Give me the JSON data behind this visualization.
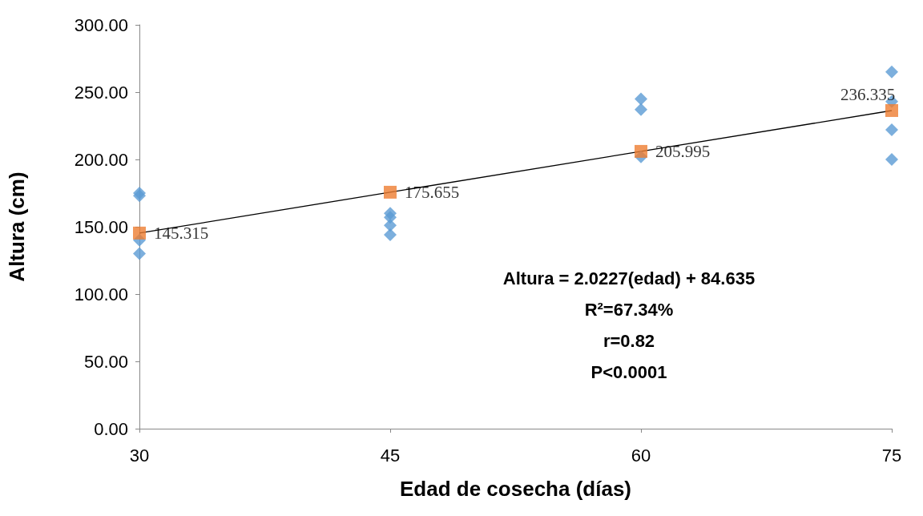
{
  "chart_data": {
    "type": "scatter",
    "xlabel": "Edad de cosecha (días)",
    "ylabel": "Altura (cm)",
    "xlim": [
      30,
      75
    ],
    "xticks": [
      30,
      45,
      60,
      75
    ],
    "ylim": [
      0,
      300
    ],
    "yticks": [
      {
        "value": 0,
        "label": "0.00"
      },
      {
        "value": 50,
        "label": "50.00"
      },
      {
        "value": 100,
        "label": "100.00"
      },
      {
        "value": 150,
        "label": "150.00"
      },
      {
        "value": 200,
        "label": "200.00"
      },
      {
        "value": 250,
        "label": "250.00"
      },
      {
        "value": 300,
        "label": "300.00"
      }
    ],
    "grid": false,
    "series": [
      {
        "marker": "diamond",
        "color": "#5b9bd5",
        "x": [
          30,
          30,
          30,
          30,
          45,
          45,
          45,
          45,
          60,
          60,
          60,
          75,
          75,
          75,
          75
        ],
        "values": [
          175,
          173,
          140,
          130,
          160,
          157,
          151,
          144,
          245,
          237,
          202,
          265,
          243,
          222,
          200
        ]
      },
      {
        "type": "line",
        "marker": "none",
        "color": "#000000",
        "x": [
          30,
          75
        ],
        "values": [
          145.3,
          236.3
        ]
      },
      {
        "type": "scatter",
        "marker": "square",
        "color": "#ed7d31",
        "data_labels": true,
        "x": [
          30,
          45,
          60,
          75
        ],
        "values": [
          145.315,
          175.655,
          205.995,
          236.335
        ]
      }
    ],
    "annotations": [
      "Altura = 2.0227(edad) + 84.635",
      "R²=67.34%",
      "r=0.82",
      "P<0.0001"
    ]
  }
}
